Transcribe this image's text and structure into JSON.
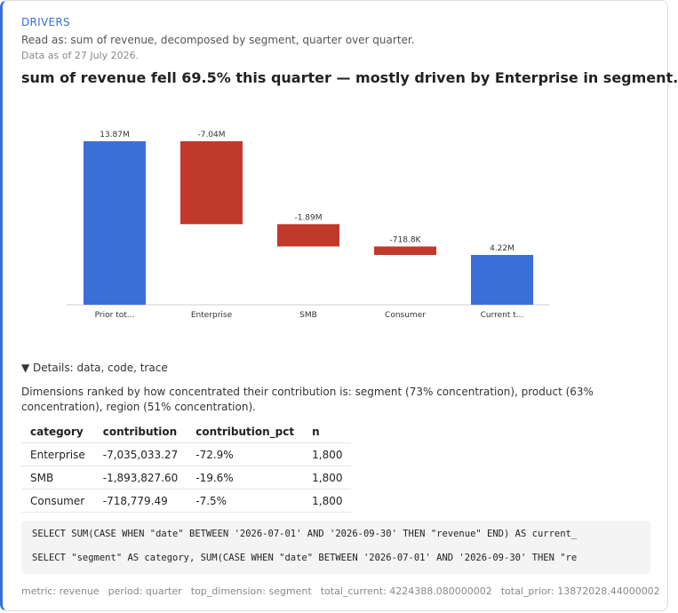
{
  "header": {
    "eyebrow": "DRIVERS",
    "read_as": "Read as: sum of revenue, decomposed by segment, quarter over quarter.",
    "as_of": "Data as of 27 July 2026.",
    "headline": "sum of revenue fell 69.5% this quarter — mostly driven by Enterprise in segment."
  },
  "chart_data": {
    "type": "waterfall",
    "categories": [
      "Prior tot...",
      "Enterprise",
      "SMB",
      "Consumer",
      "Current t..."
    ],
    "values": [
      13872028.44,
      -7035033.27,
      -1893827.6,
      -718779.49,
      4224388.08
    ],
    "value_labels": [
      "13.87M",
      "-7.04M",
      "-1.89M",
      "-718.8K",
      "4.22M"
    ],
    "total_color": "#3b6fd8",
    "decrease_color": "#c0392b"
  },
  "details": {
    "summary": "▼ Details: data, code, trace",
    "text": "Dimensions ranked by how concentrated their contribution is: segment (73% concentration), product (63% concentration), region (51% concentration).",
    "table": {
      "columns": [
        "category",
        "contribution",
        "contribution_pct",
        "n"
      ],
      "rows": [
        [
          "Enterprise",
          "-7,035,033.27",
          "-72.9%",
          "1,800"
        ],
        [
          "SMB",
          "-1,893,827.60",
          "-19.6%",
          "1,800"
        ],
        [
          "Consumer",
          "-718,779.49",
          "-7.5%",
          "1,800"
        ]
      ]
    },
    "code": [
      "SELECT SUM(CASE WHEN \"date\" BETWEEN '2026-07-01' AND '2026-09-30' THEN \"revenue\" END) AS current_",
      "SELECT \"segment\" AS category, SUM(CASE WHEN \"date\" BETWEEN '2026-07-01' AND '2026-09-30' THEN \"re"
    ]
  },
  "footer": [
    "metric: revenue",
    "period: quarter",
    "top_dimension: segment",
    "total_current: 4224388.080000002",
    "total_prior: 13872028.44000002"
  ]
}
